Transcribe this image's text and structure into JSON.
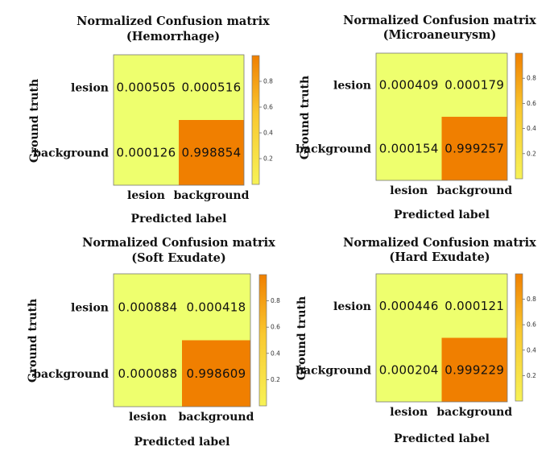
{
  "chart_data": [
    {
      "type": "heatmap",
      "title": "Normalized Confusion matrix",
      "subtitle": "(Hemorrhage)",
      "xlabel": "Predicted label",
      "ylabel": "Ground truth",
      "row_labels": [
        "lesion",
        "background"
      ],
      "col_labels": [
        "lesion",
        "background"
      ],
      "values": [
        [
          0.000505,
          0.000516
        ],
        [
          0.000126,
          0.998854
        ]
      ],
      "value_labels": [
        [
          "0.000505",
          "0.000516"
        ],
        [
          "0.000126",
          "0.998854"
        ]
      ],
      "colorbar_ticks": [
        "0.8",
        "0.6",
        "0.4",
        "0.2"
      ],
      "colorbar_tick_values": [
        0.8,
        0.6,
        0.4,
        0.2
      ]
    },
    {
      "type": "heatmap",
      "title": "Normalized Confusion matrix",
      "subtitle": "(Microaneurysm)",
      "xlabel": "Predicted label",
      "ylabel": "Ground truth",
      "row_labels": [
        "lesion",
        "background"
      ],
      "col_labels": [
        "lesion",
        "background"
      ],
      "values": [
        [
          0.000409,
          0.000179
        ],
        [
          0.000154,
          0.999257
        ]
      ],
      "value_labels": [
        [
          "0.000409",
          "0.000179"
        ],
        [
          "0.000154",
          "0.999257"
        ]
      ],
      "colorbar_ticks": [
        "0.8",
        "0.6",
        "0.4",
        "0.2"
      ],
      "colorbar_tick_values": [
        0.8,
        0.6,
        0.4,
        0.2
      ]
    },
    {
      "type": "heatmap",
      "title": "Normalized Confusion matrix",
      "subtitle": "(Soft Exudate)",
      "xlabel": "Predicted label",
      "ylabel": "Ground truth",
      "row_labels": [
        "lesion",
        "background"
      ],
      "col_labels": [
        "lesion",
        "background"
      ],
      "values": [
        [
          0.000884,
          0.000418
        ],
        [
          8.8e-05,
          0.998609
        ]
      ],
      "value_labels": [
        [
          "0.000884",
          "0.000418"
        ],
        [
          "0.000088",
          "0.998609"
        ]
      ],
      "colorbar_ticks": [
        "0.8",
        "0.6",
        "0.4",
        "0.2"
      ],
      "colorbar_tick_values": [
        0.8,
        0.6,
        0.4,
        0.2
      ]
    },
    {
      "type": "heatmap",
      "title": "Normalized Confusion matrix",
      "subtitle": "(Hard Exudate)",
      "xlabel": "Predicted label",
      "ylabel": "Ground truth",
      "row_labels": [
        "lesion",
        "background"
      ],
      "col_labels": [
        "lesion",
        "background"
      ],
      "values": [
        [
          0.000446,
          0.000121
        ],
        [
          0.000204,
          0.999229
        ]
      ],
      "value_labels": [
        [
          "0.000446",
          "0.000121"
        ],
        [
          "0.000204",
          "0.999229"
        ]
      ],
      "colorbar_ticks": [
        "0.8",
        "0.6",
        "0.4",
        "0.2"
      ],
      "colorbar_tick_values": [
        0.8,
        0.6,
        0.4,
        0.2
      ]
    }
  ],
  "colors": {
    "low": "#eeff6e",
    "high": "#f07f00",
    "cbar_low": "#f7f256",
    "cbar_mid": "#f9c830",
    "cbar_high": "#f07f00"
  }
}
